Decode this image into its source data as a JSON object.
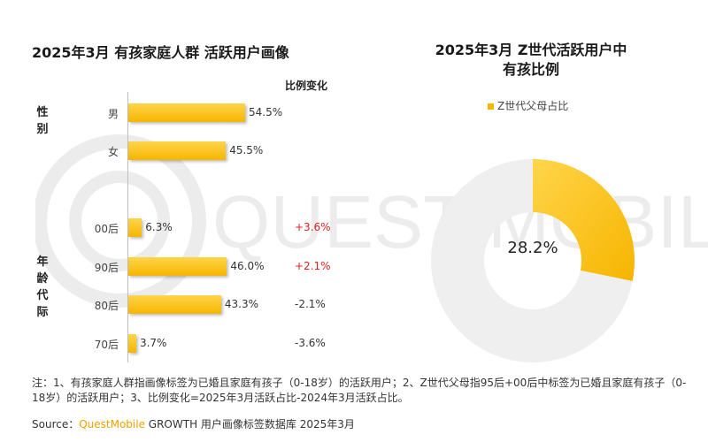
{
  "left_title": "2025年3月 有孩家庭人群 活跃用户画像",
  "right_title_lines": [
    "2025年3月 Z世代活跃用户中",
    "有孩比例"
  ],
  "change_header": "比例变化",
  "group_labels": {
    "gender": "性别",
    "age": "年龄代际"
  },
  "colors": {
    "bar": "#f7b500",
    "bar_light": "#ffd54a",
    "donut_rest": "#efefef",
    "positive": "#e02020",
    "neutral": "#333333"
  },
  "legend_label": "Z世代父母占比",
  "note": "注：1、有孩家庭人群指画像标签为已婚且家庭有孩子（0-18岁）的活跃用户；2、Z世代父母指95后+00后中标签为已婚且家庭有孩子（0-18岁）的活跃用户；3、比例变化=2025年3月活跃占比-2024年3月活跃占比。",
  "source": {
    "prefix": "Source：",
    "brand": "QuestMobile",
    "rest": " GROWTH 用户画像标签数据库 2025年3月"
  },
  "watermark": "QUEST MOBILE",
  "chart_data": [
    {
      "type": "bar",
      "orientation": "horizontal",
      "title": "2025年3月 有孩家庭人群 活跃用户画像",
      "groups": [
        {
          "name": "性别",
          "categories": [
            "男",
            "女"
          ],
          "values": [
            54.5,
            45.5
          ],
          "value_labels": [
            "54.5%",
            "45.5%"
          ],
          "changes": [
            "",
            ""
          ]
        },
        {
          "name": "年龄代际",
          "categories": [
            "00后",
            "90后",
            "80后",
            "70后"
          ],
          "values": [
            6.3,
            46.0,
            43.3,
            3.7
          ],
          "value_labels": [
            "6.3%",
            "46.0%",
            "43.3%",
            "3.7%"
          ],
          "changes": [
            "+3.6%",
            "+2.1%",
            "-2.1%",
            "-3.6%"
          ]
        }
      ],
      "unit": "%"
    },
    {
      "type": "pie",
      "variant": "donut",
      "title": "2025年3月 Z世代活跃用户中有孩比例",
      "slices": [
        {
          "name": "Z世代父母占比",
          "value": 28.2
        },
        {
          "name": "",
          "value": 71.8
        }
      ],
      "center_label": "28.2%",
      "legend_placement": "top"
    }
  ]
}
